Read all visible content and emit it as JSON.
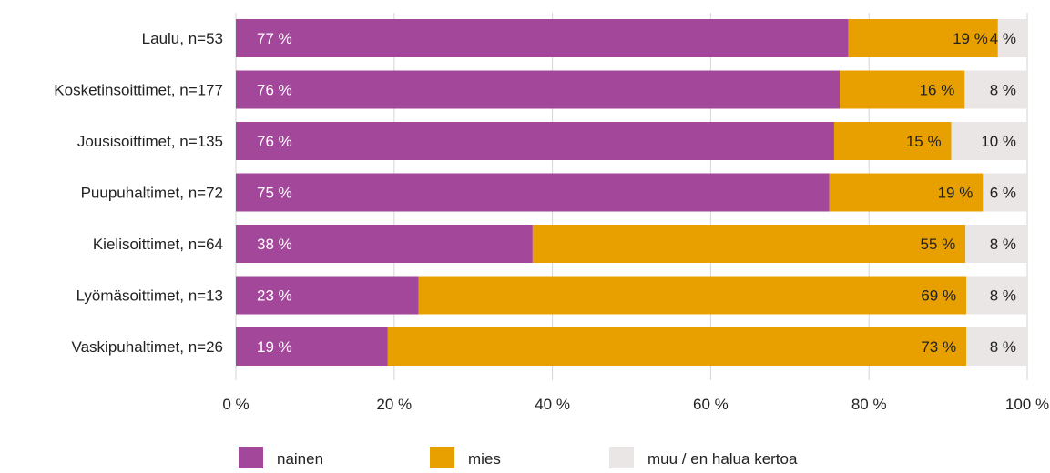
{
  "chart_data": {
    "type": "bar",
    "orientation": "horizontal",
    "stacked": true,
    "xlim": [
      0,
      100
    ],
    "grid": true,
    "legend_position": "bottom",
    "x_ticks": [
      "0 %",
      "20 %",
      "40 %",
      "60 %",
      "80 %",
      "100 %"
    ],
    "categories": [
      "Laulu, n=53",
      "Kosketinsoittimet, n=177",
      "Jousisoittimet, n=135",
      "Puupuhaltimet, n=72",
      "Kielisoittimet, n=64",
      "Lyömäsoittimet, n=13",
      "Vaskipuhaltimet, n=26"
    ],
    "series": [
      {
        "name": "nainen",
        "color": "#a3479a",
        "values": [
          77.4,
          76.3,
          75.6,
          75.0,
          37.5,
          23.1,
          19.2
        ],
        "labels": [
          "77 %",
          "76 %",
          "76 %",
          "75 %",
          "38 %",
          "23 %",
          "19 %"
        ]
      },
      {
        "name": "mies",
        "color": "#e8a000",
        "values": [
          18.9,
          15.8,
          14.8,
          19.4,
          54.7,
          69.2,
          73.1
        ],
        "labels": [
          "19 %",
          "16 %",
          "15 %",
          "19 %",
          "55 %",
          "69 %",
          "73 %"
        ]
      },
      {
        "name": "muu / en halua kertoa",
        "color": "#ebe6e6",
        "values": [
          3.7,
          7.9,
          9.6,
          5.6,
          7.8,
          7.7,
          7.7
        ],
        "labels": [
          "4 %",
          "8 %",
          "10 %",
          "6 %",
          "8 %",
          "8 %",
          "8 %"
        ]
      }
    ]
  }
}
